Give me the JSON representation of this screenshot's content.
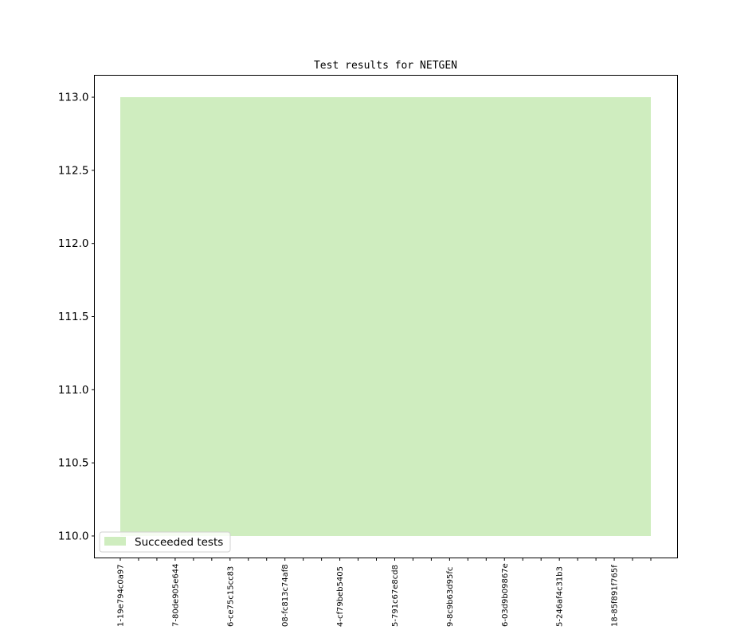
{
  "chart_data": {
    "type": "area",
    "title": "Test results for NETGEN",
    "xlabel": "",
    "ylabel": "",
    "x_tick_labels": [
      "1-19e794c0a97",
      "",
      "",
      "7-80de905e644",
      "",
      "",
      "6-ce75c15cc83",
      "",
      "",
      "08-fc813c74af8",
      "",
      "",
      "4-cf79beb5405",
      "",
      "",
      "5-791c67e8cd8",
      "",
      "",
      "9-8c9b63d95fc",
      "",
      "",
      "6-03d9b09867e",
      "",
      "",
      "5-246af4c31b3",
      "",
      "",
      "18-85f891f765f",
      "",
      ""
    ],
    "y_ticks": [
      110.0,
      110.5,
      111.0,
      111.5,
      112.0,
      112.5,
      113.0
    ],
    "y_tick_labels": [
      "110.0",
      "110.5",
      "111.0",
      "111.5",
      "112.0",
      "112.5",
      "113.0"
    ],
    "ylim": [
      109.85,
      113.15
    ],
    "grid": false,
    "legend_position": "lower-left",
    "series": [
      {
        "name": "Succeeded tests",
        "color": "#cfedbf",
        "baseline": 110,
        "values": [
          113,
          113,
          113,
          113,
          113,
          113,
          113,
          113,
          113,
          113,
          113,
          113,
          113,
          113,
          113,
          113,
          113,
          113,
          113,
          113,
          113,
          113,
          113,
          113,
          113,
          113,
          113,
          113,
          113,
          113
        ]
      }
    ]
  }
}
